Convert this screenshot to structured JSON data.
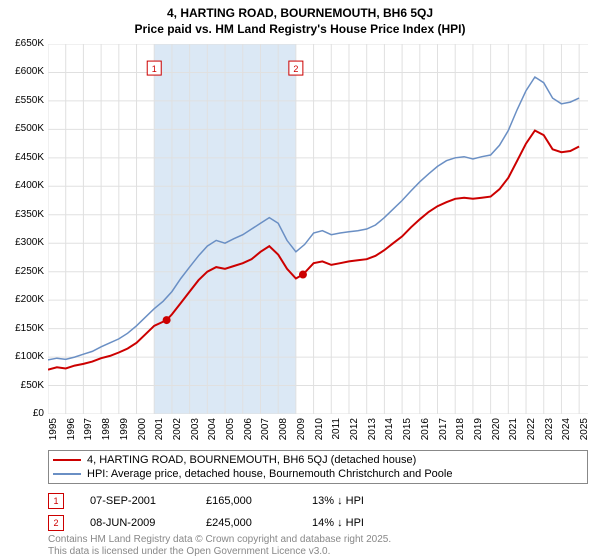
{
  "title_line1": "4, HARTING ROAD, BOURNEMOUTH, BH6 5QJ",
  "title_line2": "Price paid vs. HM Land Registry's House Price Index (HPI)",
  "chart": {
    "type": "line",
    "background_color": "#ffffff",
    "grid_color": "#e0e0e0",
    "highlight_band_color": "#dbe8f5",
    "highlight_band_start": "2001",
    "highlight_band_end": "2009",
    "xmin": 1995,
    "xmax": 2025.5,
    "ymin": 0,
    "ymax": 650000,
    "ytick_step": 50000,
    "yticks": [
      "£0",
      "£50K",
      "£100K",
      "£150K",
      "£200K",
      "£250K",
      "£300K",
      "£350K",
      "£400K",
      "£450K",
      "£500K",
      "£550K",
      "£600K",
      "£650K"
    ],
    "xticks": [
      "1995",
      "1996",
      "1997",
      "1998",
      "1999",
      "2000",
      "2001",
      "2002",
      "2003",
      "2004",
      "2005",
      "2006",
      "2007",
      "2008",
      "2009",
      "2010",
      "2011",
      "2012",
      "2013",
      "2014",
      "2015",
      "2016",
      "2017",
      "2018",
      "2019",
      "2020",
      "2021",
      "2022",
      "2023",
      "2024",
      "2025"
    ],
    "series": [
      {
        "name": "price_paid",
        "legend": "4, HARTING ROAD, BOURNEMOUTH, BH6 5QJ (detached house)",
        "color": "#cc0000",
        "width": 2,
        "data": [
          [
            1995.0,
            78000
          ],
          [
            1995.5,
            82000
          ],
          [
            1996.0,
            80000
          ],
          [
            1996.5,
            85000
          ],
          [
            1997.0,
            88000
          ],
          [
            1997.5,
            92000
          ],
          [
            1998.0,
            98000
          ],
          [
            1998.5,
            102000
          ],
          [
            1999.0,
            108000
          ],
          [
            1999.5,
            115000
          ],
          [
            2000.0,
            125000
          ],
          [
            2000.5,
            140000
          ],
          [
            2001.0,
            155000
          ],
          [
            2001.7,
            165000
          ],
          [
            2002.0,
            175000
          ],
          [
            2002.5,
            195000
          ],
          [
            2003.0,
            215000
          ],
          [
            2003.5,
            235000
          ],
          [
            2004.0,
            250000
          ],
          [
            2004.5,
            258000
          ],
          [
            2005.0,
            255000
          ],
          [
            2005.5,
            260000
          ],
          [
            2006.0,
            265000
          ],
          [
            2006.5,
            272000
          ],
          [
            2007.0,
            285000
          ],
          [
            2007.5,
            295000
          ],
          [
            2008.0,
            280000
          ],
          [
            2008.5,
            255000
          ],
          [
            2009.0,
            238000
          ],
          [
            2009.4,
            245000
          ],
          [
            2010.0,
            265000
          ],
          [
            2010.5,
            268000
          ],
          [
            2011.0,
            262000
          ],
          [
            2011.5,
            265000
          ],
          [
            2012.0,
            268000
          ],
          [
            2012.5,
            270000
          ],
          [
            2013.0,
            272000
          ],
          [
            2013.5,
            278000
          ],
          [
            2014.0,
            288000
          ],
          [
            2014.5,
            300000
          ],
          [
            2015.0,
            312000
          ],
          [
            2015.5,
            328000
          ],
          [
            2016.0,
            342000
          ],
          [
            2016.5,
            355000
          ],
          [
            2017.0,
            365000
          ],
          [
            2017.5,
            372000
          ],
          [
            2018.0,
            378000
          ],
          [
            2018.5,
            380000
          ],
          [
            2019.0,
            378000
          ],
          [
            2019.5,
            380000
          ],
          [
            2020.0,
            382000
          ],
          [
            2020.5,
            395000
          ],
          [
            2021.0,
            415000
          ],
          [
            2021.5,
            445000
          ],
          [
            2022.0,
            475000
          ],
          [
            2022.5,
            498000
          ],
          [
            2023.0,
            490000
          ],
          [
            2023.5,
            465000
          ],
          [
            2024.0,
            460000
          ],
          [
            2024.5,
            462000
          ],
          [
            2025.0,
            470000
          ]
        ]
      },
      {
        "name": "hpi",
        "legend": "HPI: Average price, detached house, Bournemouth Christchurch and Poole",
        "color": "#6a8fc4",
        "width": 1.5,
        "data": [
          [
            1995.0,
            95000
          ],
          [
            1995.5,
            98000
          ],
          [
            1996.0,
            96000
          ],
          [
            1996.5,
            100000
          ],
          [
            1997.0,
            105000
          ],
          [
            1997.5,
            110000
          ],
          [
            1998.0,
            118000
          ],
          [
            1998.5,
            125000
          ],
          [
            1999.0,
            132000
          ],
          [
            1999.5,
            142000
          ],
          [
            2000.0,
            155000
          ],
          [
            2000.5,
            170000
          ],
          [
            2001.0,
            185000
          ],
          [
            2001.5,
            198000
          ],
          [
            2002.0,
            215000
          ],
          [
            2002.5,
            238000
          ],
          [
            2003.0,
            258000
          ],
          [
            2003.5,
            278000
          ],
          [
            2004.0,
            295000
          ],
          [
            2004.5,
            305000
          ],
          [
            2005.0,
            300000
          ],
          [
            2005.5,
            308000
          ],
          [
            2006.0,
            315000
          ],
          [
            2006.5,
            325000
          ],
          [
            2007.0,
            335000
          ],
          [
            2007.5,
            345000
          ],
          [
            2008.0,
            335000
          ],
          [
            2008.5,
            305000
          ],
          [
            2009.0,
            285000
          ],
          [
            2009.5,
            298000
          ],
          [
            2010.0,
            318000
          ],
          [
            2010.5,
            322000
          ],
          [
            2011.0,
            315000
          ],
          [
            2011.5,
            318000
          ],
          [
            2012.0,
            320000
          ],
          [
            2012.5,
            322000
          ],
          [
            2013.0,
            325000
          ],
          [
            2013.5,
            332000
          ],
          [
            2014.0,
            345000
          ],
          [
            2014.5,
            360000
          ],
          [
            2015.0,
            375000
          ],
          [
            2015.5,
            392000
          ],
          [
            2016.0,
            408000
          ],
          [
            2016.5,
            422000
          ],
          [
            2017.0,
            435000
          ],
          [
            2017.5,
            445000
          ],
          [
            2018.0,
            450000
          ],
          [
            2018.5,
            452000
          ],
          [
            2019.0,
            448000
          ],
          [
            2019.5,
            452000
          ],
          [
            2020.0,
            455000
          ],
          [
            2020.5,
            472000
          ],
          [
            2021.0,
            498000
          ],
          [
            2021.5,
            535000
          ],
          [
            2022.0,
            568000
          ],
          [
            2022.5,
            592000
          ],
          [
            2023.0,
            582000
          ],
          [
            2023.5,
            555000
          ],
          [
            2024.0,
            545000
          ],
          [
            2024.5,
            548000
          ],
          [
            2025.0,
            555000
          ]
        ]
      }
    ],
    "markers": [
      {
        "id": "1",
        "x": 2001.7,
        "y": 165000,
        "box_color": "#cc0000",
        "box_bg": "#ffffff",
        "annot_y": 620000,
        "annot_x": 2001.0
      },
      {
        "id": "2",
        "x": 2009.4,
        "y": 245000,
        "box_color": "#cc0000",
        "box_bg": "#ffffff",
        "annot_y": 620000,
        "annot_x": 2009.0
      }
    ]
  },
  "annotations": [
    {
      "id": "1",
      "date": "07-SEP-2001",
      "price": "£165,000",
      "diff": "13% ↓ HPI",
      "box_color": "#cc0000"
    },
    {
      "id": "2",
      "date": "08-JUN-2009",
      "price": "£245,000",
      "diff": "14% ↓ HPI",
      "box_color": "#cc0000"
    }
  ],
  "copyright_line1": "Contains HM Land Registry data © Crown copyright and database right 2025.",
  "copyright_line2": "This data is licensed under the Open Government Licence v3.0."
}
